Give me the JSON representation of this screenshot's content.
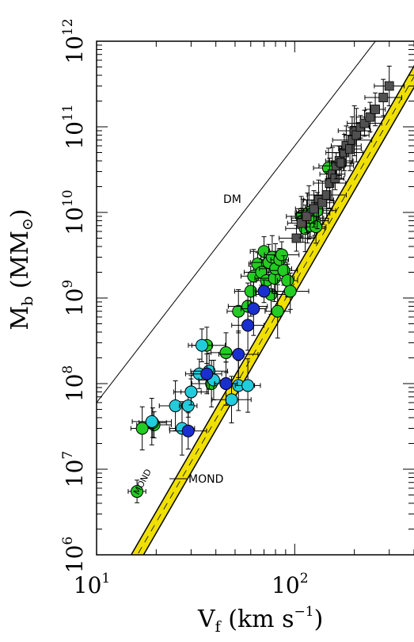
{
  "chart_data": {
    "type": "scatter",
    "x_scale": "log",
    "y_scale": "log",
    "xlim": [
      10,
      400
    ],
    "ylim": [
      1000000,
      1000000000000
    ],
    "x_ticks": [
      {
        "value": 10,
        "label_base": "10",
        "label_exp": "1"
      },
      {
        "value": 100,
        "label_base": "10",
        "label_exp": "2"
      }
    ],
    "y_ticks": [
      {
        "value": 1000000,
        "label_base": "10",
        "label_exp": "6"
      },
      {
        "value": 10000000,
        "label_base": "10",
        "label_exp": "7"
      },
      {
        "value": 100000000,
        "label_base": "10",
        "label_exp": "8"
      },
      {
        "value": 1000000000,
        "label_base": "10",
        "label_exp": "9"
      },
      {
        "value": 10000000000,
        "label_base": "10",
        "label_exp": "10"
      },
      {
        "value": 100000000000,
        "label_base": "10",
        "label_exp": "11"
      },
      {
        "value": 1000000000000,
        "label_base": "10",
        "label_exp": "12"
      }
    ],
    "xlabel": {
      "main": "V",
      "sub": "f",
      "rest": " (km s",
      "sup": "−1",
      "close": ")"
    },
    "ylabel": {
      "main": "M",
      "sub": "b",
      "open": " (M",
      "sub2": "⊙",
      "close": ")"
    },
    "lines": [
      {
        "label": "DM",
        "slope": 3,
        "point": [
          10,
          60000000
        ],
        "color": "#000000"
      },
      {
        "label": "MOND",
        "slope": 4,
        "point": [
          100,
          1500000000
        ],
        "color": "#f0e000",
        "edge": "#000000"
      }
    ],
    "annotations": [
      "DM",
      "MOND",
      "MOND"
    ],
    "colors": {
      "green": "#22cc22",
      "cyan": "#22ccdd",
      "blue": "#1a2fd0",
      "gray": "#505050",
      "mond": "#f0e000"
    },
    "series": [
      {
        "marker": "circle",
        "color": "#22cc22",
        "points": [
          [
            16.0,
            5500000
          ],
          [
            19.5,
            33000000
          ],
          [
            19.2,
            35000000
          ],
          [
            30.0,
            80000000
          ],
          [
            36.0,
            280000000
          ],
          [
            45.0,
            230000000
          ],
          [
            52.0,
            700000000
          ],
          [
            58.0,
            800000000
          ],
          [
            60.0,
            1200000000
          ],
          [
            62.0,
            1800000000
          ],
          [
            65.0,
            2500000000
          ],
          [
            68.0,
            2000000000
          ],
          [
            70.0,
            3500000000
          ],
          [
            72.0,
            1600000000
          ],
          [
            74.0,
            2600000000
          ],
          [
            76.0,
            1100000000
          ],
          [
            77.0,
            3000000000
          ],
          [
            79.0,
            1700000000
          ],
          [
            80.0,
            2200000000
          ],
          [
            82.0,
            700000000
          ],
          [
            84.0,
            2800000000
          ],
          [
            86.0,
            3200000000
          ],
          [
            88.0,
            2100000000
          ],
          [
            92.0,
            1600000000
          ],
          [
            95.0,
            1200000000
          ],
          [
            108.0,
            9000000000
          ],
          [
            110.0,
            8000000000
          ],
          [
            113.0,
            6500000000
          ],
          [
            116.0,
            8600000000
          ],
          [
            118.0,
            10000000000
          ],
          [
            120.0,
            7000000000
          ],
          [
            123.0,
            9800000000
          ],
          [
            126.0,
            8000000000
          ],
          [
            128.0,
            6800000000
          ],
          [
            130.0,
            10500000000
          ],
          [
            148.0,
            33000000000
          ],
          [
            17.0,
            30000000
          ],
          [
            38.0,
            100000000
          ]
        ]
      },
      {
        "marker": "circle",
        "color": "#22ccdd",
        "points": [
          [
            19.0,
            36000000
          ],
          [
            25.0,
            55000000
          ],
          [
            27.0,
            30000000
          ],
          [
            29.0,
            55000000
          ],
          [
            30.0,
            80000000
          ],
          [
            33.0,
            130000000
          ],
          [
            34.0,
            280000000
          ],
          [
            37.0,
            140000000
          ],
          [
            39.0,
            110000000
          ],
          [
            45.0,
            100000000
          ],
          [
            48.0,
            65000000
          ],
          [
            52.0,
            95000000
          ],
          [
            58.0,
            95000000
          ]
        ]
      },
      {
        "marker": "circle",
        "color": "#1a2fd0",
        "points": [
          [
            29.0,
            28000000
          ],
          [
            36.0,
            130000000
          ],
          [
            45.0,
            100000000
          ],
          [
            52.0,
            220000000
          ],
          [
            58.0,
            480000000
          ],
          [
            62.0,
            750000000
          ],
          [
            70.0,
            1200000000
          ]
        ]
      },
      {
        "marker": "square",
        "color": "#505050",
        "points": [
          [
            102.0,
            5000000000
          ],
          [
            108.0,
            7500000000
          ],
          [
            115.0,
            9000000000
          ],
          [
            125.0,
            11000000000
          ],
          [
            132.0,
            14000000000
          ],
          [
            138.0,
            13000000000
          ],
          [
            145.0,
            16000000000
          ],
          [
            150.0,
            22000000000
          ],
          [
            155.0,
            28000000000
          ],
          [
            160.0,
            25000000000
          ],
          [
            162.0,
            35000000000
          ],
          [
            168.0,
            40000000000
          ],
          [
            172.0,
            38000000000
          ],
          [
            178.0,
            50000000000
          ],
          [
            182.0,
            60000000000
          ],
          [
            190.0,
            55000000000
          ],
          [
            195.0,
            70000000000
          ],
          [
            200.0,
            90000000000
          ],
          [
            205.0,
            80000000000
          ],
          [
            215.0,
            100000000000
          ],
          [
            225.0,
            110000000000
          ],
          [
            240.0,
            130000000000
          ],
          [
            255.0,
            160000000000
          ],
          [
            280.0,
            220000000000
          ],
          [
            300.0,
            300000000000
          ]
        ]
      }
    ]
  }
}
